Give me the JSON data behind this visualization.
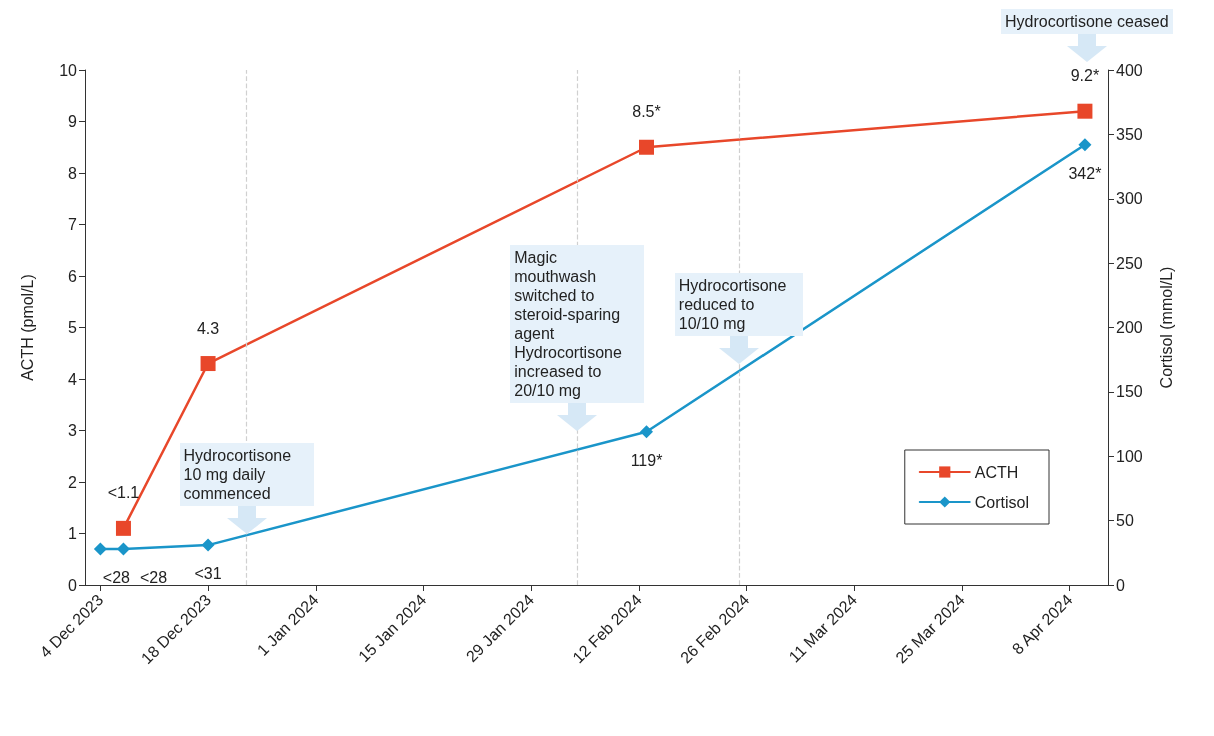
{
  "chart_data": {
    "type": "line",
    "ylabel": "ACTH (pmol/L)",
    "y2label": "Cortisol (mmol/L)",
    "xlim": [
      "2023-12-02",
      "2024-04-13"
    ],
    "xticks": [
      {
        "value": "2023-12-04",
        "label": "4 Dec 2023"
      },
      {
        "value": "2023-12-18",
        "label": "18 Dec 2023"
      },
      {
        "value": "2024-01-01",
        "label": "1 Jan 2024"
      },
      {
        "value": "2024-01-15",
        "label": "15 Jan 2024"
      },
      {
        "value": "2024-01-29",
        "label": "29 Jan 2024"
      },
      {
        "value": "2024-02-12",
        "label": "12 Feb 2024"
      },
      {
        "value": "2024-02-26",
        "label": "26 Feb 2024"
      },
      {
        "value": "2024-03-11",
        "label": "11 Mar 2024"
      },
      {
        "value": "2024-03-25",
        "label": "25 Mar 2024"
      },
      {
        "value": "2024-04-08",
        "label": "8 Apr 2024"
      }
    ],
    "ylim": [
      0,
      10
    ],
    "yticks": [
      0,
      1,
      2,
      3,
      4,
      5,
      6,
      7,
      8,
      9,
      10
    ],
    "y2lim": [
      0,
      400
    ],
    "y2ticks": [
      0,
      50,
      100,
      150,
      200,
      250,
      300,
      350,
      400
    ],
    "grid": false,
    "legend": "bottom right",
    "series": [
      {
        "name": "ACTH",
        "color": "#e8472a",
        "marker": "square",
        "x": [
          "2023-12-07",
          "2023-12-18",
          "2024-02-13",
          "2024-04-10"
        ],
        "values": [
          1.1,
          4.3,
          8.5,
          9.2
        ],
        "value_labels": [
          "<1.1",
          "4.3",
          "8.5*",
          "9.2*"
        ]
      },
      {
        "name": "Cortisol",
        "color": "#1a95c9",
        "marker": "diamond",
        "axis": "y2",
        "x": [
          "2023-12-04",
          "2023-12-07",
          "2023-12-18",
          "2024-02-13",
          "2024-04-10"
        ],
        "values": [
          28,
          28,
          31,
          119,
          342
        ],
        "value_labels": [
          "<28",
          "<28",
          "<31",
          "119*",
          "342*"
        ]
      }
    ],
    "ref_lines": [
      {
        "axis": "x",
        "value": "2023-12-23",
        "color": "#d0d0d0",
        "line_style": "dashed"
      },
      {
        "axis": "x",
        "value": "2024-02-04",
        "color": "#d0d0d0",
        "line_style": "dashed"
      },
      {
        "axis": "x",
        "value": "2024-02-25",
        "color": "#d0d0d0",
        "line_style": "dashed"
      }
    ],
    "annotations": [
      {
        "text": "Hydrocortisone 10 mg daily commenced",
        "x": "2023-12-23",
        "y": 1.0
      },
      {
        "text": "Magic mouthwash switched to steroid-sparing agent Hydrocortisone increased to 20/10 mg",
        "x": "2024-02-04",
        "y": 3.0
      },
      {
        "text": "Hydrocortisone reduced to 10/10 mg",
        "x": "2024-02-25",
        "y": 4.3
      },
      "Hydrocortisone ceased"
    ]
  }
}
